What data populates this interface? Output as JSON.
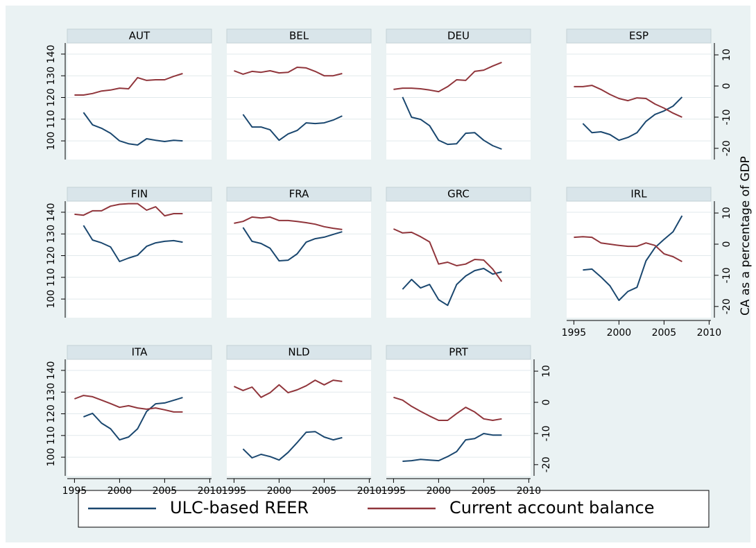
{
  "chart_data": {
    "type": "line",
    "panels": [
      "AUT",
      "BEL",
      "DEU",
      "ESP",
      "FIN",
      "FRA",
      "GRC",
      "IRL",
      "ITA",
      "NLD",
      "PRT"
    ],
    "x": [
      1995,
      1996,
      1997,
      1998,
      1999,
      2000,
      2001,
      2002,
      2003,
      2004,
      2005,
      2006,
      2007
    ],
    "xlim": [
      1994.2,
      2010.2
    ],
    "xticks": [
      1995,
      2000,
      2005,
      2010
    ],
    "ylim": [
      91.4,
      145.1
    ],
    "yticks": [
      100,
      110,
      120,
      130,
      140
    ],
    "y2lim": [
      -23.6,
      13.8
    ],
    "y2ticks": [
      -20,
      -10,
      0,
      10
    ],
    "y2label": "CA as a percentage of GDP",
    "grid": true,
    "legend": "bottom",
    "series": [
      {
        "name": "ULC-based REER",
        "color": "#1a476f",
        "values": [
          [
            null,
            113.1,
            107.4,
            105.8,
            103.5,
            100.0,
            98.7,
            98.1,
            101.0,
            100.3,
            99.7,
            100.3,
            100.0
          ],
          [
            null,
            112.2,
            106.4,
            106.4,
            105.1,
            100.3,
            103.2,
            104.8,
            108.3,
            108.0,
            108.3,
            109.6,
            111.5
          ],
          [
            null,
            120.2,
            110.9,
            109.9,
            107.0,
            100.3,
            98.4,
            98.7,
            103.5,
            103.8,
            100.3,
            97.8,
            96.2
          ],
          [
            null,
            108.0,
            103.8,
            104.2,
            102.9,
            100.3,
            101.6,
            103.8,
            109.0,
            112.2,
            113.8,
            116.0,
            120.2
          ],
          [
            null,
            133.9,
            127.2,
            125.9,
            124.0,
            117.3,
            118.9,
            120.2,
            124.3,
            125.9,
            126.6,
            126.9,
            126.2
          ],
          [
            null,
            133.0,
            126.6,
            125.6,
            123.4,
            117.6,
            117.9,
            120.8,
            126.2,
            127.8,
            128.5,
            129.8,
            131.0
          ],
          [
            null,
            104.5,
            109.0,
            105.1,
            106.7,
            99.7,
            97.1,
            106.7,
            110.6,
            113.1,
            114.1,
            111.5,
            112.5
          ],
          [
            null,
            113.4,
            113.8,
            110.2,
            106.1,
            99.4,
            103.5,
            105.4,
            117.6,
            123.7,
            127.5,
            131.0,
            138.4
          ],
          [
            null,
            118.6,
            120.2,
            115.7,
            113.1,
            108.0,
            109.3,
            113.1,
            121.1,
            124.6,
            125.0,
            126.2,
            127.5
          ],
          [
            null,
            103.8,
            99.7,
            101.3,
            100.3,
            98.7,
            102.2,
            106.7,
            111.5,
            111.8,
            109.3,
            108.0,
            109.0
          ],
          [
            null,
            98.1,
            98.4,
            99.0,
            98.7,
            98.4,
            100.3,
            102.6,
            108.0,
            108.6,
            110.9,
            110.2,
            110.2
          ]
        ]
      },
      {
        "name": "Current account balance",
        "color": "#90353b",
        "axis": "y2",
        "values": [
          [
            -2.9,
            -2.9,
            -2.4,
            -1.6,
            -1.3,
            -0.7,
            -0.9,
            2.7,
            1.8,
            2.0,
            2.0,
            3.1,
            4.0
          ],
          [
            4.9,
            3.8,
            4.7,
            4.4,
            4.9,
            4.2,
            4.4,
            6.0,
            5.8,
            4.7,
            3.3,
            3.3,
            4.0
          ],
          [
            -1.1,
            -0.7,
            -0.7,
            -0.9,
            -1.3,
            -1.8,
            -0.2,
            2.0,
            1.8,
            4.7,
            5.1,
            6.4,
            7.6
          ],
          [
            -0.2,
            -0.2,
            0.2,
            -1.1,
            -2.7,
            -4.0,
            -4.7,
            -3.8,
            -4.0,
            -5.8,
            -7.1,
            -8.7,
            -10.0
          ],
          [
            9.6,
            9.3,
            10.7,
            10.7,
            12.2,
            12.8,
            13.0,
            13.0,
            10.9,
            12.0,
            9.1,
            9.8,
            9.8
          ],
          [
            6.7,
            7.3,
            8.7,
            8.4,
            8.7,
            7.6,
            7.6,
            7.3,
            6.9,
            6.4,
            5.6,
            5.1,
            4.7
          ],
          [
            4.9,
            3.6,
            3.8,
            2.4,
            0.7,
            -6.4,
            -5.8,
            -6.9,
            -6.4,
            -4.9,
            -5.1,
            -8.0,
            -12.0
          ],
          [
            2.2,
            2.4,
            2.2,
            0.4,
            0.0,
            -0.4,
            -0.7,
            -0.7,
            0.4,
            -0.4,
            -3.1,
            -4.0,
            -5.6
          ],
          [
            1.1,
            2.2,
            1.8,
            0.7,
            -0.4,
            -1.6,
            -1.1,
            -1.8,
            -2.2,
            -1.8,
            -2.4,
            -3.1,
            -3.1
          ],
          [
            5.1,
            3.8,
            4.9,
            1.6,
            3.1,
            5.6,
            3.1,
            4.0,
            5.3,
            7.1,
            5.6,
            7.1,
            6.7
          ],
          [
            1.6,
            0.7,
            -1.3,
            -2.9,
            -4.4,
            -5.8,
            -5.8,
            -3.6,
            -1.6,
            -3.1,
            -5.3,
            -5.8,
            -5.3
          ]
        ]
      }
    ]
  }
}
